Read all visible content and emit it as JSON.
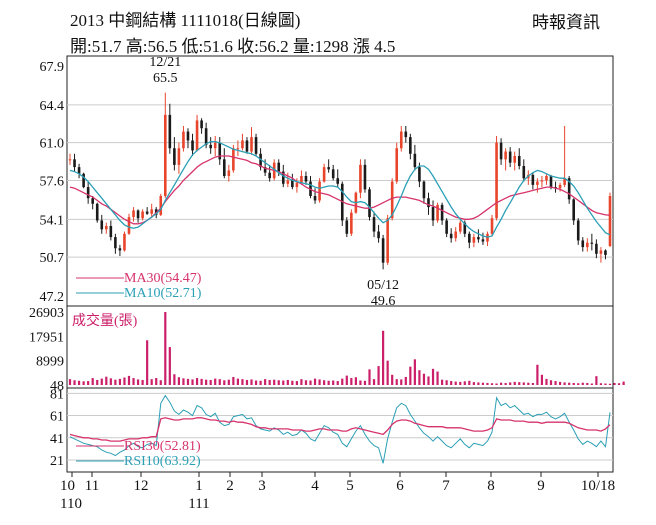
{
  "header": {
    "title": "2013  中鋼結構 1111018(日線圖)",
    "ohlc": "開:51.7 高:56.5 低:51.6 收:56.2 量:1298 漲 4.5",
    "source": "時報資訊"
  },
  "colors": {
    "up": "#e8452c",
    "down": "#1a1a1a",
    "ma30": "#d6336c",
    "ma10": "#2a9fb5",
    "volume": "#cc1f6a",
    "grid": "#cccccc"
  },
  "chart_data": [
    {
      "type": "candlestick",
      "name": "price",
      "y_ticks": [
        "67.9",
        "64.4",
        "61.0",
        "57.6",
        "54.1",
        "50.7",
        "47.2"
      ],
      "ylim": [
        47.2,
        67.9
      ],
      "grid": true,
      "high_annotation": {
        "date": "12/21",
        "value": "65.5"
      },
      "low_annotation": {
        "date": "05/12",
        "value": "49.6"
      },
      "legend": [
        {
          "label": "MA30(54.47)",
          "color": "#d6336c"
        },
        {
          "label": "MA10(52.71)",
          "color": "#2a9fb5"
        }
      ],
      "candles": [
        [
          59.5,
          60,
          59,
          59.5
        ],
        [
          59.5,
          60,
          58.4,
          58.8
        ],
        [
          58.8,
          59.1,
          57.8,
          58.2
        ],
        [
          58.2,
          58.3,
          56.9,
          57.0
        ],
        [
          57.0,
          57.5,
          55.5,
          56.0
        ],
        [
          56.0,
          56.2,
          55.0,
          55.5
        ],
        [
          55.5,
          55.6,
          53.8,
          54.0
        ],
        [
          54.0,
          54.5,
          52.8,
          53.2
        ],
        [
          53.2,
          53.8,
          52.8,
          53.5
        ],
        [
          53.5,
          54.0,
          52.2,
          52.5
        ],
        [
          52.5,
          52.8,
          51.0,
          51.5
        ],
        [
          51.5,
          51.8,
          50.8,
          51.3
        ],
        [
          51.3,
          53.0,
          51.2,
          52.8
        ],
        [
          52.8,
          54.6,
          52.7,
          54.3
        ],
        [
          54.3,
          55.2,
          53.9,
          54.9
        ],
        [
          54.9,
          55.0,
          53.8,
          54.2
        ],
        [
          54.2,
          55.0,
          54.0,
          54.8
        ],
        [
          54.8,
          55.2,
          54.5,
          54.6
        ],
        [
          54.6,
          55.5,
          54.3,
          55.0
        ],
        [
          55.0,
          55.2,
          54.2,
          54.5
        ],
        [
          54.5,
          56.4,
          54.4,
          56.2
        ],
        [
          56.2,
          65.5,
          56.0,
          63.5
        ],
        [
          63.5,
          64.5,
          60.0,
          60.5
        ],
        [
          60.5,
          61.5,
          58.5,
          59.0
        ],
        [
          59.0,
          61.0,
          58.2,
          60.5
        ],
        [
          60.5,
          62.5,
          60.2,
          62.0
        ],
        [
          62.0,
          62.3,
          60.5,
          61.2
        ],
        [
          61.2,
          61.8,
          59.8,
          60.3
        ],
        [
          60.3,
          63.5,
          60.2,
          63.0
        ],
        [
          63.0,
          63.2,
          61.8,
          62.3
        ],
        [
          62.3,
          62.8,
          60.5,
          60.8
        ],
        [
          60.8,
          61.5,
          60.0,
          60.5
        ],
        [
          60.5,
          61.6,
          59.8,
          61.0
        ],
        [
          61.0,
          61.5,
          59.0,
          59.5
        ],
        [
          59.5,
          60.5,
          57.8,
          58.0
        ],
        [
          58.0,
          59.0,
          57.5,
          58.5
        ],
        [
          58.5,
          60.8,
          58.3,
          60.5
        ],
        [
          60.5,
          61.2,
          59.8,
          60.5
        ],
        [
          60.5,
          61.8,
          60.3,
          61.2
        ],
        [
          61.2,
          61.5,
          60.0,
          60.2
        ],
        [
          60.2,
          62.4,
          59.9,
          61.5
        ],
        [
          61.5,
          61.8,
          59.8,
          60.0
        ],
        [
          60.0,
          60.5,
          58.5,
          58.8
        ],
        [
          58.8,
          59.5,
          58.0,
          58.3
        ],
        [
          58.3,
          59.0,
          57.5,
          57.8
        ],
        [
          57.8,
          59.5,
          57.6,
          59.2
        ],
        [
          59.2,
          59.5,
          58.0,
          58.4
        ],
        [
          58.4,
          59.0,
          57.0,
          57.3
        ],
        [
          57.3,
          58.3,
          57.0,
          57.6
        ],
        [
          57.6,
          58.2,
          56.8,
          57.0
        ],
        [
          57.0,
          57.8,
          56.5,
          57.4
        ],
        [
          57.4,
          58.5,
          57.2,
          58.0
        ],
        [
          58.0,
          58.4,
          57.2,
          57.5
        ],
        [
          57.5,
          58.0,
          56.0,
          56.2
        ],
        [
          56.2,
          56.9,
          55.5,
          55.8
        ],
        [
          55.8,
          57.8,
          55.6,
          57.5
        ],
        [
          57.5,
          59.1,
          57.4,
          58.8
        ],
        [
          58.8,
          59.5,
          58.3,
          58.6
        ],
        [
          58.6,
          59.0,
          57.6,
          57.8
        ],
        [
          57.8,
          58.6,
          57.0,
          57.3
        ],
        [
          57.3,
          57.5,
          53.5,
          54.0
        ],
        [
          54.0,
          54.3,
          52.5,
          52.8
        ],
        [
          52.8,
          55.0,
          52.6,
          54.7
        ],
        [
          54.7,
          56.6,
          54.6,
          56.5
        ],
        [
          56.5,
          59.5,
          56.0,
          59.0
        ],
        [
          59.0,
          59.5,
          56.5,
          56.8
        ],
        [
          56.8,
          57.0,
          54.0,
          54.3
        ],
        [
          54.3,
          54.8,
          52.5,
          53.0
        ],
        [
          53.0,
          53.6,
          52.0,
          52.4
        ],
        [
          52.4,
          52.7,
          49.6,
          50.2
        ],
        [
          50.2,
          54.5,
          50.0,
          54.2
        ],
        [
          54.2,
          57.8,
          54.0,
          57.5
        ],
        [
          57.5,
          61.0,
          57.3,
          60.5
        ],
        [
          60.5,
          62.5,
          60.2,
          62.0
        ],
        [
          62.0,
          62.5,
          61.0,
          61.5
        ],
        [
          61.5,
          61.8,
          59.5,
          60.0
        ],
        [
          60.0,
          60.8,
          58.5,
          58.8
        ],
        [
          58.8,
          59.2,
          57.0,
          57.5
        ],
        [
          57.5,
          57.6,
          55.5,
          56.0
        ],
        [
          56.0,
          56.5,
          54.5,
          55.2
        ],
        [
          55.2,
          55.8,
          53.5,
          54.0
        ],
        [
          54.0,
          55.6,
          53.8,
          55.4
        ],
        [
          55.4,
          55.6,
          53.6,
          54.0
        ],
        [
          54.0,
          54.2,
          52.5,
          52.8
        ],
        [
          52.8,
          53.3,
          52.0,
          52.4
        ],
        [
          52.4,
          53.4,
          52.1,
          53.0
        ],
        [
          53.0,
          54.0,
          52.8,
          53.8
        ],
        [
          53.8,
          54.0,
          52.5,
          52.8
        ],
        [
          52.8,
          53.0,
          51.5,
          52.0
        ],
        [
          52.0,
          52.8,
          51.6,
          52.5
        ],
        [
          52.5,
          53.2,
          52.0,
          52.3
        ],
        [
          52.3,
          52.9,
          51.8,
          52.1
        ],
        [
          52.1,
          53.0,
          51.7,
          52.8
        ],
        [
          52.8,
          54.5,
          52.6,
          54.2
        ],
        [
          54.2,
          61.6,
          54.0,
          61.0
        ],
        [
          61.0,
          61.4,
          59.0,
          59.5
        ],
        [
          59.5,
          60.5,
          58.5,
          60.2
        ],
        [
          60.2,
          60.6,
          58.8,
          59.2
        ],
        [
          59.2,
          60.2,
          58.5,
          59.8
        ],
        [
          59.8,
          60.5,
          58.6,
          58.9
        ],
        [
          58.9,
          59.5,
          57.5,
          57.8
        ],
        [
          57.8,
          58.5,
          57.2,
          58.1
        ],
        [
          58.1,
          58.3,
          56.8,
          57.2
        ],
        [
          57.2,
          57.8,
          56.5,
          57.5
        ],
        [
          57.5,
          58.0,
          57.0,
          57.6
        ],
        [
          57.6,
          58.2,
          57.2,
          58.0
        ],
        [
          58.0,
          58.1,
          56.8,
          57.0
        ],
        [
          57.0,
          57.5,
          56.5,
          56.9
        ],
        [
          56.9,
          57.4,
          56.6,
          57.2
        ],
        [
          57.2,
          62.5,
          57.0,
          57.8
        ],
        [
          57.8,
          58.0,
          55.5,
          55.9
        ],
        [
          55.9,
          56.0,
          53.6,
          54.0
        ],
        [
          54.0,
          54.2,
          51.8,
          52.2
        ],
        [
          52.2,
          52.5,
          51.2,
          51.6
        ],
        [
          51.6,
          52.4,
          51.2,
          52.0
        ],
        [
          52.0,
          52.8,
          51.3,
          51.9
        ],
        [
          51.9,
          52.3,
          50.6,
          51.0
        ],
        [
          51.0,
          51.6,
          50.2,
          51.3
        ],
        [
          51.3,
          51.4,
          50.5,
          50.9
        ],
        [
          51.7,
          56.5,
          51.6,
          56.2
        ]
      ],
      "ma30": [
        57.0,
        56.9,
        56.7,
        56.5,
        56.3,
        56.1,
        55.8,
        55.5,
        55.3,
        55.0,
        54.7,
        54.4,
        54.1,
        53.9,
        53.7,
        53.7,
        53.8,
        54.0,
        54.3,
        54.7,
        55.1,
        55.7,
        56.2,
        56.7,
        57.1,
        57.6,
        58.0,
        58.4,
        58.8,
        59.1,
        59.3,
        59.5,
        59.7,
        59.8,
        59.8,
        59.8,
        59.7,
        59.6,
        59.5,
        59.4,
        59.2,
        59.1,
        58.9,
        58.7,
        58.6,
        58.5,
        58.4,
        58.2,
        58.0,
        57.8,
        57.5,
        57.3,
        57.0,
        56.8,
        56.6,
        56.5,
        56.4,
        56.3,
        56.1,
        55.9,
        55.7,
        55.5,
        55.4,
        55.3,
        55.2,
        55.1,
        55.1,
        55.2,
        55.4,
        55.6,
        55.8,
        56.0,
        56.1,
        56.1,
        56.1,
        56.0,
        55.9,
        55.8,
        55.6,
        55.4,
        55.3,
        55.1,
        54.9,
        54.7,
        54.5,
        54.3,
        54.2,
        54.1,
        54.1,
        54.2,
        54.4,
        54.7,
        55.0,
        55.3,
        55.6,
        55.8,
        56.0,
        56.2,
        56.3,
        56.4,
        56.5,
        56.6,
        56.7,
        56.8,
        56.9,
        57.0,
        57.0,
        56.9,
        56.8,
        56.6,
        56.4,
        56.1,
        55.8,
        55.5,
        55.2,
        54.9,
        54.7,
        54.6,
        54.5,
        54.47
      ],
      "ma10": [
        58.5,
        58.4,
        58.2,
        57.9,
        57.5,
        57.0,
        56.5,
        56.0,
        55.5,
        55.0,
        54.5,
        54.0,
        53.6,
        53.4,
        53.3,
        53.4,
        53.7,
        54.0,
        54.3,
        54.6,
        55.0,
        55.8,
        56.5,
        57.2,
        57.9,
        58.6,
        59.3,
        59.9,
        60.3,
        60.6,
        60.9,
        61.1,
        61.1,
        61.0,
        60.8,
        60.6,
        60.4,
        60.3,
        60.2,
        60.1,
        60.0,
        59.8,
        59.5,
        59.2,
        58.9,
        58.6,
        58.3,
        58.0,
        57.8,
        57.6,
        57.5,
        57.4,
        57.3,
        57.2,
        57.0,
        56.9,
        57.0,
        57.1,
        57.1,
        57.0,
        56.6,
        56.1,
        55.7,
        55.6,
        55.7,
        55.6,
        55.2,
        54.7,
        54.2,
        53.8,
        54.0,
        54.5,
        55.3,
        56.2,
        57.2,
        58.0,
        58.6,
        58.9,
        58.9,
        58.6,
        58.0,
        57.3,
        56.6,
        55.9,
        55.2,
        54.6,
        54.1,
        53.7,
        53.3,
        53.0,
        52.8,
        52.6,
        52.5,
        52.6,
        53.4,
        54.1,
        54.9,
        55.6,
        56.3,
        57.0,
        57.6,
        58.0,
        58.3,
        58.5,
        58.4,
        58.2,
        58.0,
        57.9,
        57.8,
        57.8,
        57.5,
        57.1,
        56.5,
        55.8,
        55.1,
        54.5,
        53.9,
        53.4,
        52.9,
        52.71
      ]
    },
    {
      "type": "bar",
      "name": "volume",
      "title": "成交量(張)",
      "y_ticks": [
        "26903",
        "17951",
        "8999",
        "48"
      ],
      "ylim": [
        48,
        26903
      ],
      "values": [
        2200,
        1800,
        1600,
        1400,
        1500,
        2600,
        1900,
        2400,
        3100,
        2500,
        2000,
        2300,
        2800,
        3400,
        2600,
        2100,
        1900,
        16500,
        2200,
        2600,
        1800,
        26903,
        14000,
        4000,
        2900,
        2500,
        2300,
        2100,
        2600,
        2300,
        2000,
        1900,
        2400,
        2200,
        1800,
        2000,
        3000,
        2400,
        2200,
        1900,
        2100,
        1700,
        1600,
        2200,
        1900,
        2000,
        1800,
        1700,
        1900,
        1600,
        1500,
        2200,
        1800,
        1700,
        2400,
        2100,
        1800,
        1600,
        1700,
        1500,
        2400,
        3500,
        2600,
        2900,
        1700,
        1600,
        5800,
        2200,
        7000,
        20000,
        9000,
        3800,
        2200,
        2100,
        3000,
        6800,
        9500,
        5500,
        4200,
        3200,
        6000,
        5000,
        2000,
        1800,
        1500,
        1300,
        1200,
        1400,
        1600,
        1100,
        1000,
        900,
        800,
        700,
        600,
        900,
        800,
        1000,
        1200,
        1100,
        1000,
        900,
        800,
        7500,
        3800,
        2300,
        1800,
        1500,
        1200,
        1000,
        900,
        800,
        700,
        900,
        800,
        600,
        3300,
        700,
        600,
        500,
        800,
        700,
        1298
      ]
    },
    {
      "type": "line",
      "name": "rsi",
      "y_ticks": [
        "81",
        "61",
        "41",
        "21"
      ],
      "ylim": [
        12,
        84
      ],
      "legend": [
        {
          "label": "RSI30(52.81)",
          "color": "#d6336c"
        },
        {
          "label": "RSI10(63.92)",
          "color": "#2a9fb5"
        }
      ],
      "rsi30": [
        44,
        43,
        42,
        41,
        41,
        40,
        40,
        39,
        39,
        38,
        38,
        38,
        39,
        40,
        40,
        40,
        41,
        41,
        42,
        42,
        58,
        59,
        58,
        57,
        57,
        58,
        58,
        58,
        59,
        59,
        58,
        57,
        57,
        56,
        56,
        55,
        56,
        55,
        55,
        54,
        53,
        51,
        50,
        50,
        49,
        49,
        49,
        49,
        49,
        48,
        48,
        48,
        47,
        47,
        48,
        49,
        49,
        48,
        48,
        48,
        47,
        47,
        49,
        50,
        49,
        48,
        47,
        46,
        45,
        44,
        48,
        53,
        56,
        57,
        57,
        56,
        54,
        53,
        52,
        51,
        51,
        51,
        51,
        50,
        50,
        50,
        50,
        49,
        48,
        47,
        47,
        47,
        48,
        50,
        58,
        57,
        57,
        57,
        56,
        56,
        56,
        55,
        55,
        55,
        54,
        55,
        55,
        55,
        55,
        55,
        54,
        52,
        50,
        49,
        48,
        48,
        48,
        47,
        49,
        52.81
      ],
      "rsi10": [
        42,
        40,
        38,
        36,
        35,
        34,
        33,
        30,
        28,
        27,
        25,
        28,
        30,
        34,
        36,
        33,
        32,
        35,
        36,
        34,
        72,
        79,
        73,
        65,
        62,
        66,
        64,
        61,
        70,
        68,
        62,
        60,
        63,
        55,
        52,
        53,
        60,
        61,
        62,
        58,
        59,
        52,
        49,
        48,
        47,
        50,
        48,
        44,
        46,
        43,
        44,
        48,
        45,
        40,
        38,
        45,
        52,
        50,
        46,
        44,
        36,
        33,
        40,
        47,
        52,
        44,
        38,
        34,
        32,
        18,
        40,
        55,
        68,
        72,
        70,
        62,
        56,
        50,
        45,
        42,
        38,
        42,
        38,
        34,
        32,
        36,
        40,
        35,
        32,
        36,
        35,
        34,
        38,
        46,
        77,
        70,
        72,
        68,
        70,
        66,
        62,
        63,
        60,
        62,
        62,
        64,
        60,
        58,
        60,
        63,
        55,
        48,
        40,
        35,
        38,
        36,
        33,
        38,
        33,
        63.92
      ]
    }
  ],
  "x_axis": {
    "labels": [
      "10",
      "11",
      "12",
      "1",
      "2",
      "3",
      "4",
      "5",
      "6",
      "7",
      "8",
      "9",
      "10/18"
    ],
    "year_labels": [
      "110",
      "111"
    ]
  }
}
